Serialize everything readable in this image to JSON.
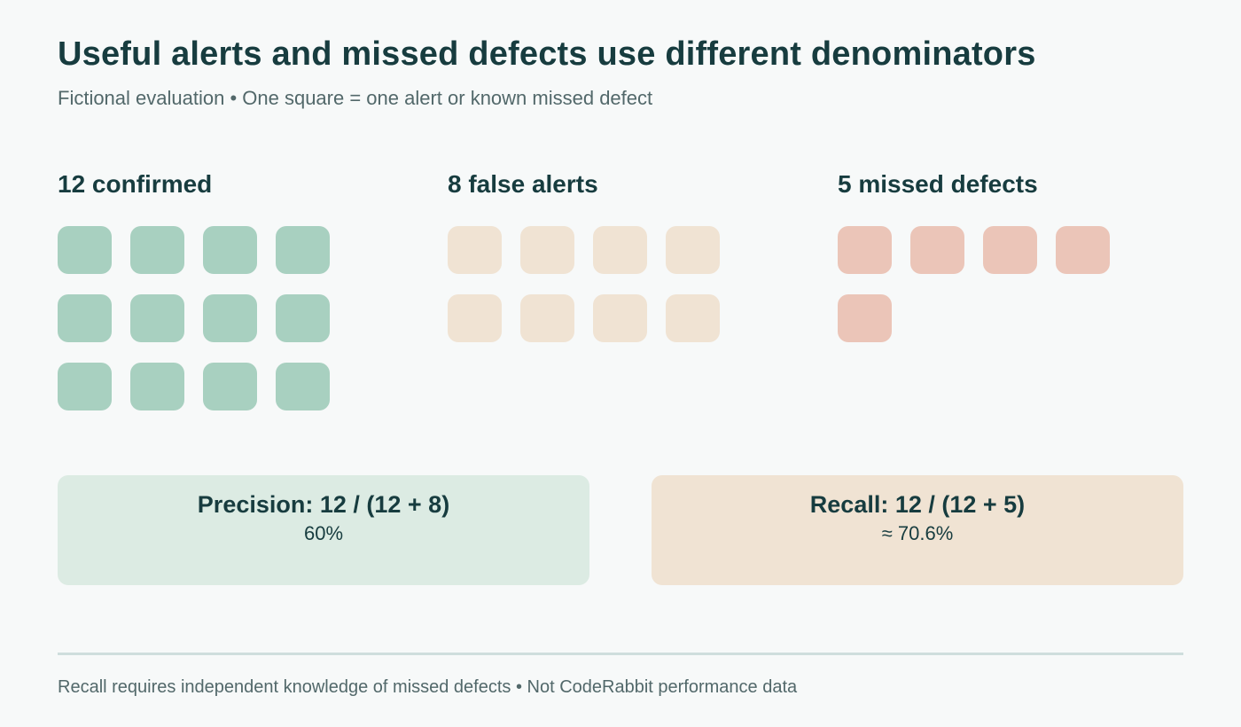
{
  "header": {
    "title": "Useful alerts and missed defects use different denominators",
    "subtitle": "Fictional evaluation • One square = one alert or known missed defect"
  },
  "chart_data": {
    "type": "unit",
    "groups": [
      {
        "label": "12 confirmed",
        "count": 12,
        "color": "#a8d0c0"
      },
      {
        "label": "8 false alerts",
        "count": 8,
        "color": "#f0e3d3"
      },
      {
        "label": "5 missed defects",
        "count": 5,
        "color": "#ebc5b8"
      }
    ],
    "squares_per_row": 4
  },
  "metrics": {
    "precision": {
      "formula": "Precision: 12 / (12 + 8)",
      "value": "60%",
      "color": "#dcebe3"
    },
    "recall": {
      "formula": "Recall: 12 / (12 + 5)",
      "value": "≈ 70.6%",
      "color": "#f0e3d3"
    }
  },
  "footer": {
    "note": "Recall requires independent knowledge of missed defects • Not CodeRabbit performance data"
  }
}
